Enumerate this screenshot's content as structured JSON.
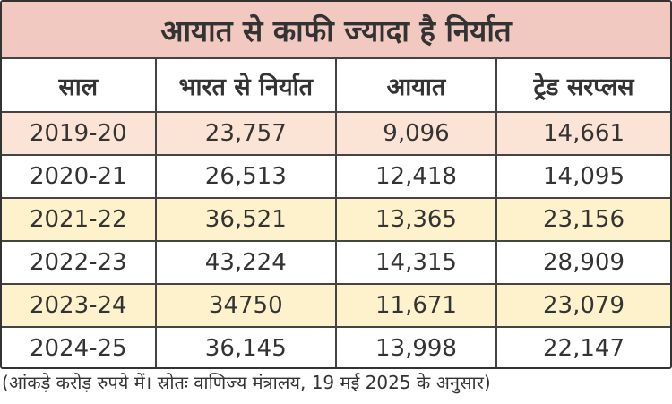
{
  "title": "आयात से काफी ज्यादा है निर्यात",
  "headers": [
    "साल",
    "भारत से निर्यात",
    "आयात",
    "ट्रेड सरप्लस"
  ],
  "rows": [
    {
      "year": "2019-20",
      "export": "23,757",
      "import": "9,096",
      "surplus": "14,661",
      "color": "#fbe3d5"
    },
    {
      "year": "2020-21",
      "export": "26,513",
      "import": "12,418",
      "surplus": "14,095",
      "color": "#ffffff"
    },
    {
      "year": "2021-22",
      "export": "36,521",
      "import": "13,365",
      "surplus": "23,156",
      "color": "#fdf2cc"
    },
    {
      "year": "2022-23",
      "export": "43,224",
      "import": "14,315",
      "surplus": "28,909",
      "color": "#ffffff"
    },
    {
      "year": "2023-24",
      "export": "34750",
      "import": "11,671",
      "surplus": "23,079",
      "color": "#fdf2cc"
    },
    {
      "year": "2024-25",
      "export": "36,145",
      "import": "13,998",
      "surplus": "22,147",
      "color": "#ffffff"
    }
  ],
  "footnote": "(आंकड़े करोड़ रुपये में। स्रोतः वाणिज्य मंत्रालय, 19 मई 2025 के अनुसार)"
}
